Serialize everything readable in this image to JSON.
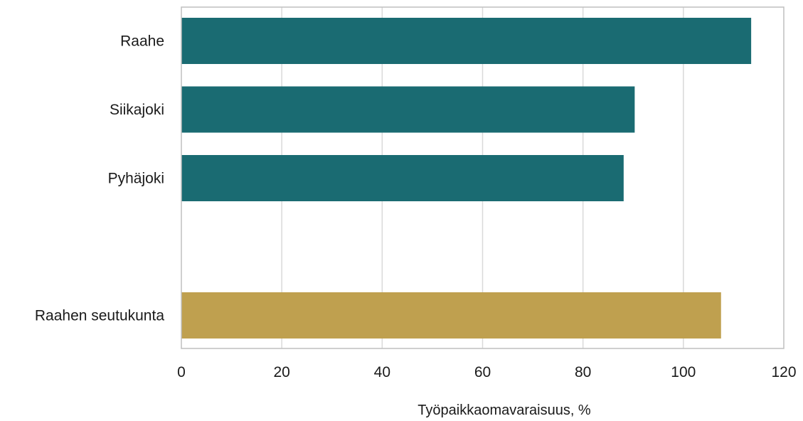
{
  "chart_data": {
    "type": "bar",
    "orientation": "horizontal",
    "categories": [
      "Raahe",
      "Siikajoki",
      "Pyhäjoki",
      "",
      "Raahen seutukunta"
    ],
    "values": [
      113.5,
      90.3,
      88.1,
      null,
      107.5
    ],
    "colors": [
      "#1a6b72",
      "#1a6b72",
      "#1a6b72",
      null,
      "#bfa04f"
    ],
    "xlabel": "Työpaikkaomavaraisuus, %",
    "ylabel": "",
    "title": "",
    "xlim": [
      0,
      120
    ],
    "xticks": [
      0,
      20,
      40,
      60,
      80,
      100,
      120
    ],
    "grid": true,
    "legend": "none"
  }
}
